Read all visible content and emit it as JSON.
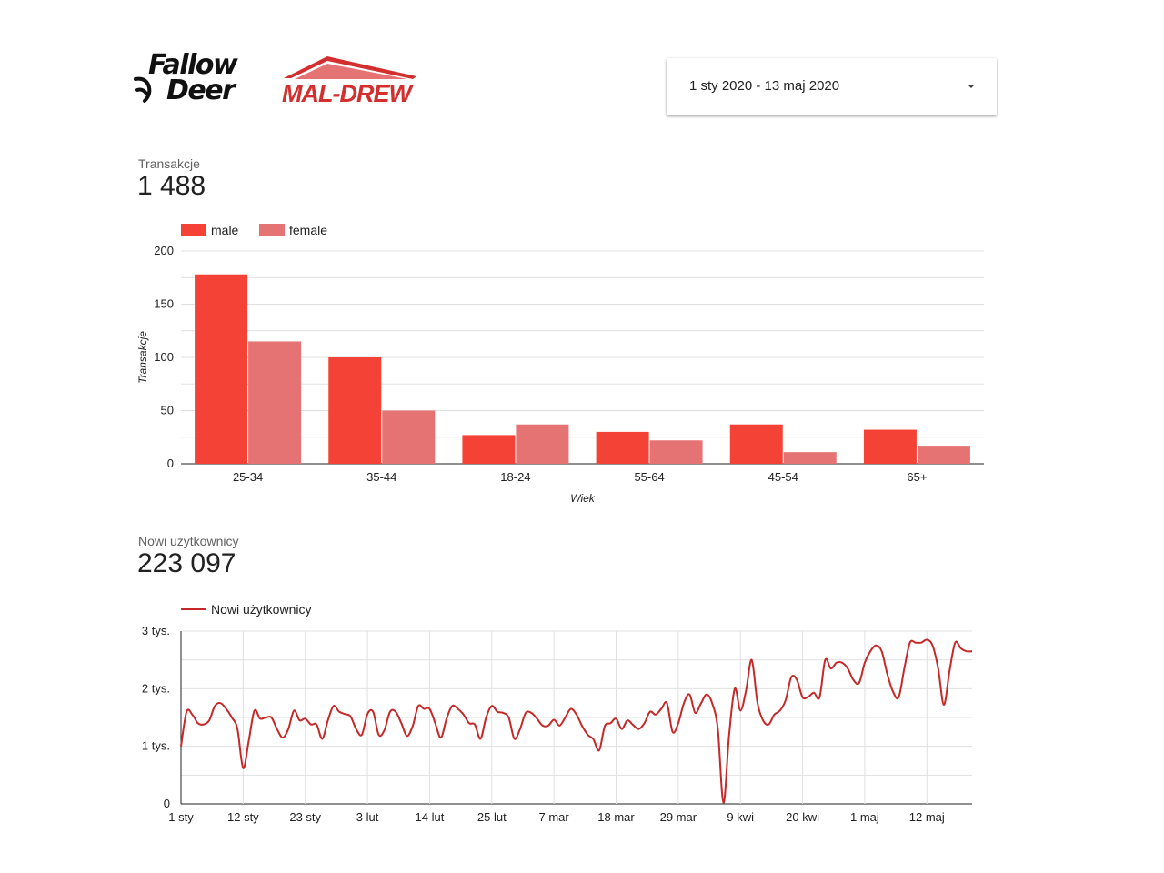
{
  "header": {
    "logos": [
      "Fallow Deer",
      "MAL-DREW"
    ],
    "logo_fallow_line1": "Fallow",
    "logo_fallow_line2": "Deer",
    "logo_maldrew": "MAL-DREW",
    "date_range": "1 sty 2020 - 13 maj 2020"
  },
  "scorecards": [
    {
      "label": "Transakcje",
      "value": "1 488"
    },
    {
      "label": "Nowi użytkownicy",
      "value": "223 097"
    }
  ],
  "colors": {
    "male": "#f44336",
    "female": "#e57373",
    "line": "#c62828",
    "grid": "#e0e0e0",
    "brand_red": "#d32f2f"
  },
  "chart_data": [
    {
      "type": "bar",
      "categories": [
        "25-34",
        "35-44",
        "18-24",
        "55-64",
        "45-54",
        "65+"
      ],
      "series": [
        {
          "name": "male",
          "values": [
            178,
            100,
            27,
            30,
            37,
            32
          ]
        },
        {
          "name": "female",
          "values": [
            115,
            50,
            37,
            22,
            11,
            17
          ]
        }
      ],
      "xlabel": "Wiek",
      "ylabel": "Transakcje",
      "ylim": [
        0,
        200
      ],
      "yticks": [
        "0",
        "50",
        "100",
        "150",
        "200"
      ],
      "grid": true,
      "legend_position": "top-left"
    },
    {
      "type": "line",
      "series": [
        {
          "name": "Nowi użytkownicy",
          "values": [
            1000,
            1600,
            1550,
            1400,
            1380,
            1450,
            1700,
            1750,
            1650,
            1500,
            1300,
            620,
            1100,
            1620,
            1480,
            1500,
            1500,
            1300,
            1150,
            1300,
            1620,
            1450,
            1480,
            1380,
            1380,
            1130,
            1450,
            1700,
            1600,
            1560,
            1520,
            1300,
            1200,
            1560,
            1600,
            1200,
            1280,
            1600,
            1600,
            1400,
            1180,
            1350,
            1700,
            1650,
            1650,
            1400,
            1150,
            1480,
            1700,
            1650,
            1550,
            1400,
            1380,
            1130,
            1500,
            1700,
            1600,
            1580,
            1500,
            1130,
            1300,
            1580,
            1580,
            1480,
            1360,
            1360,
            1460,
            1360,
            1500,
            1650,
            1550,
            1350,
            1200,
            1120,
            930,
            1350,
            1400,
            1480,
            1300,
            1450,
            1370,
            1300,
            1400,
            1600,
            1550,
            1650,
            1750,
            1250,
            1400,
            1750,
            1900,
            1580,
            1740,
            1900,
            1750,
            1300,
            20,
            1200,
            2000,
            1620,
            1970,
            2500,
            1760,
            1450,
            1380,
            1550,
            1620,
            1800,
            2200,
            2150,
            1850,
            1860,
            1930,
            1850,
            2500,
            2350,
            2450,
            2450,
            2350,
            2150,
            2100,
            2450,
            2650,
            2750,
            2650,
            2250,
            1950,
            1850,
            2350,
            2800,
            2800,
            2800,
            2850,
            2750,
            2350,
            1720,
            2300,
            2800,
            2700,
            2650,
            2650
          ],
          "color": "#c62828"
        }
      ],
      "x_start": "1 sty",
      "x_end": "13 maj",
      "xticks": [
        "1 sty",
        "12 sty",
        "23 sty",
        "3 lut",
        "14 lut",
        "25 lut",
        "7 mar",
        "18 mar",
        "29 mar",
        "9 kwi",
        "20 kwi",
        "1 maj",
        "12 maj"
      ],
      "xtick_day_index": [
        0,
        11,
        22,
        33,
        44,
        55,
        66,
        77,
        88,
        99,
        110,
        121,
        132
      ],
      "ylim": [
        0,
        3000
      ],
      "yticks": [
        "0",
        "1 tys.",
        "2 tys.",
        "3 tys."
      ],
      "grid": true,
      "legend_position": "top-left"
    }
  ]
}
